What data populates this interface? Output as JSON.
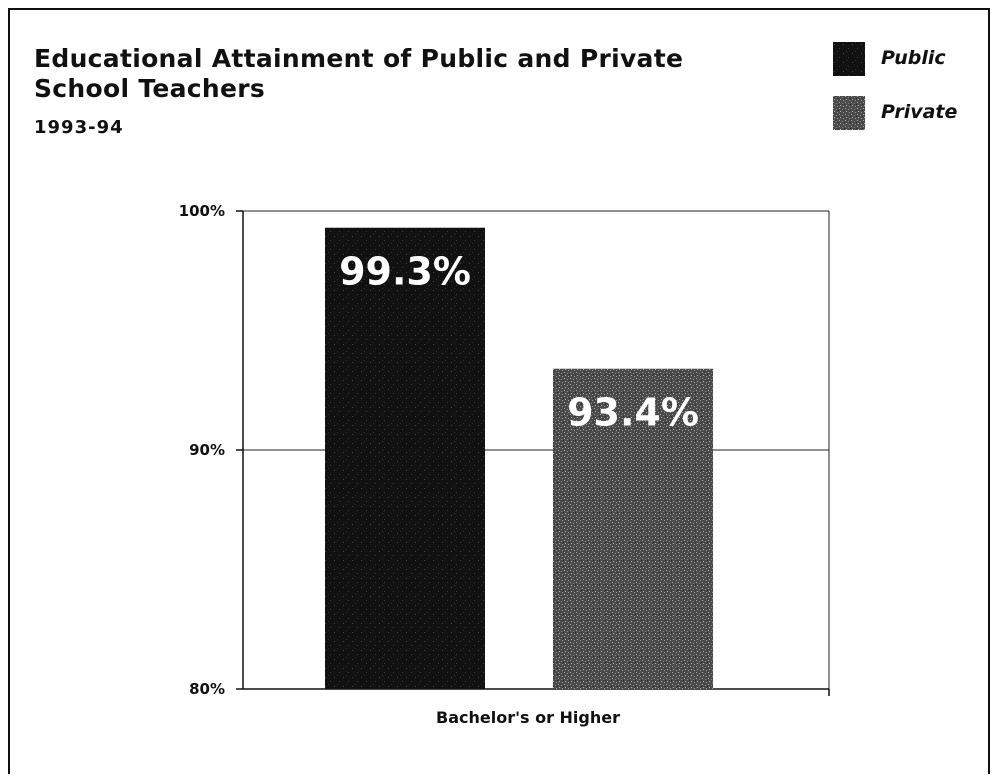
{
  "header": {
    "title": "Educational Attainment of Public and Private School Teachers",
    "subtitle": "1993-94"
  },
  "legend": [
    {
      "label": "Public",
      "color": "#111111",
      "pattern": "solid-dark-speckled"
    },
    {
      "label": "Private",
      "color": "#5f5f5f",
      "pattern": "gray-speckled"
    }
  ],
  "chart_data": {
    "type": "bar",
    "title": "Educational Attainment of Public and Private School Teachers",
    "subtitle": "1993-94",
    "categories": [
      "Bachelor's or Higher"
    ],
    "series": [
      {
        "name": "Public",
        "values": [
          99.3
        ],
        "color": "#111111"
      },
      {
        "name": "Private",
        "values": [
          93.4
        ],
        "color": "#5f5f5f"
      }
    ],
    "data_labels": [
      "99.3%",
      "93.4%"
    ],
    "xlabel": "",
    "ylabel": "",
    "ylim": [
      80,
      100
    ],
    "yticks": [
      80,
      90,
      100
    ],
    "ytick_labels": [
      "80%",
      "90%",
      "100%"
    ],
    "grid": true,
    "legend_position": "top-right"
  }
}
